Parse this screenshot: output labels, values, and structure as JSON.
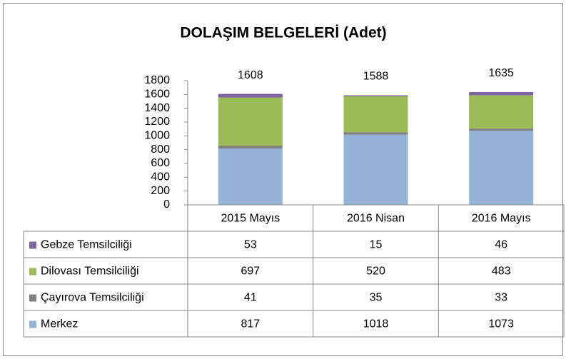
{
  "chart_data": {
    "type": "stacked_bar",
    "title": "DOLAŞIM BELGELERİ (Adet)",
    "categories": [
      "2015 Mayıs",
      "2016 Nisan",
      "2016 Mayıs"
    ],
    "series": [
      {
        "name": "Merkez",
        "color": "#95b3d7",
        "values": [
          817,
          1018,
          1073
        ]
      },
      {
        "name": "Çayırova Temsilciliği",
        "color": "#808080",
        "values": [
          41,
          35,
          33
        ]
      },
      {
        "name": "Dilovası Temsilciliği",
        "color": "#9bbb59",
        "values": [
          697,
          520,
          483
        ]
      },
      {
        "name": "Gebze Temsilciliği",
        "color": "#8064a2",
        "values": [
          53,
          15,
          46
        ]
      }
    ],
    "totals": [
      1608,
      1588,
      1635
    ],
    "ylim": [
      0,
      1800
    ],
    "yticks": [
      0,
      200,
      400,
      600,
      800,
      1000,
      1200,
      1400,
      1600,
      1800
    ],
    "grid": false,
    "data_table": true
  }
}
